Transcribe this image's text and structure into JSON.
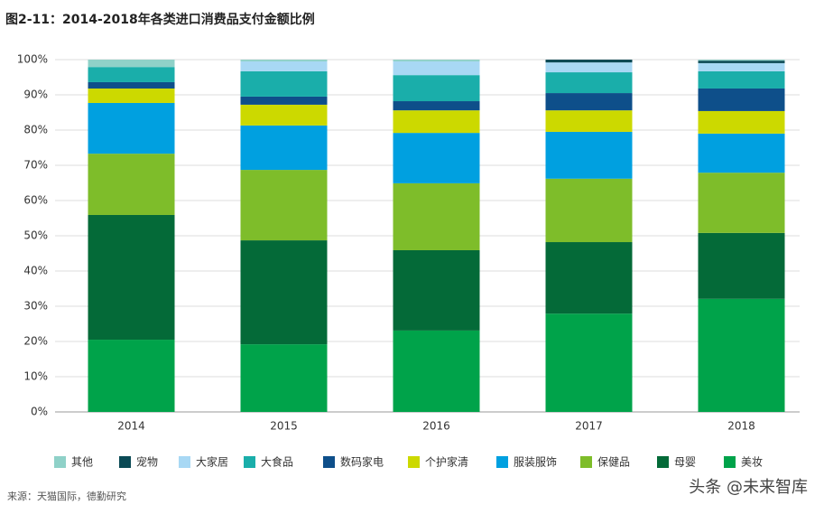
{
  "chart_data": {
    "type": "stacked_bar",
    "title": "图2-11：2014-2018年各类进口消费品支付金额比例",
    "source": "来源：天猫国际，德勤研究",
    "watermark": "头条 @未来智库",
    "categories": [
      "2014",
      "2015",
      "2016",
      "2017",
      "2018"
    ],
    "series": [
      {
        "name": "其他",
        "color": "#8fd1c8",
        "values": [
          2.1,
          0.5,
          0.5,
          0,
          0.3
        ]
      },
      {
        "name": "宠物",
        "color": "#0b4a55",
        "values": [
          0,
          0,
          0,
          0.8,
          0.7
        ]
      },
      {
        "name": "大家居",
        "color": "#a8d8f4",
        "values": [
          0,
          2.8,
          3.9,
          2.8,
          2.3
        ]
      },
      {
        "name": "大食品",
        "color": "#1aaeaa",
        "values": [
          4.3,
          7.2,
          7.4,
          5.9,
          4.9
        ]
      },
      {
        "name": "数码家电",
        "color": "#0e4f8a",
        "values": [
          1.8,
          2.3,
          2.6,
          4.9,
          6.4
        ]
      },
      {
        "name": "个护家清",
        "color": "#ccd900",
        "values": [
          4.1,
          5.9,
          6.4,
          6.1,
          6.4
        ]
      },
      {
        "name": "服装服饰",
        "color": "#00a0e0",
        "values": [
          14.4,
          12.6,
          14.3,
          13.3,
          11.1
        ]
      },
      {
        "name": "保健品",
        "color": "#7ebd2a",
        "values": [
          17.4,
          20,
          19,
          18,
          17.1
        ]
      },
      {
        "name": "母婴",
        "color": "#046a38",
        "values": [
          35.4,
          29.5,
          22.8,
          20.3,
          18.7
        ]
      },
      {
        "name": "美妆",
        "color": "#00a34a",
        "values": [
          20.5,
          19.2,
          23.1,
          27.9,
          32.1
        ]
      }
    ],
    "ylim": [
      0,
      100
    ],
    "yticks": [
      {
        "value": 0,
        "label": "0%"
      },
      {
        "value": 10,
        "label": "10%"
      },
      {
        "value": 20,
        "label": "20%"
      },
      {
        "value": 30,
        "label": "30%"
      },
      {
        "value": 40,
        "label": "40%"
      },
      {
        "value": 50,
        "label": "50%"
      },
      {
        "value": 60,
        "label": "60%"
      },
      {
        "value": 70,
        "label": "70%"
      },
      {
        "value": 80,
        "label": "80%"
      },
      {
        "value": 90,
        "label": "90%"
      },
      {
        "value": 100,
        "label": "100%"
      }
    ],
    "grid": true
  }
}
